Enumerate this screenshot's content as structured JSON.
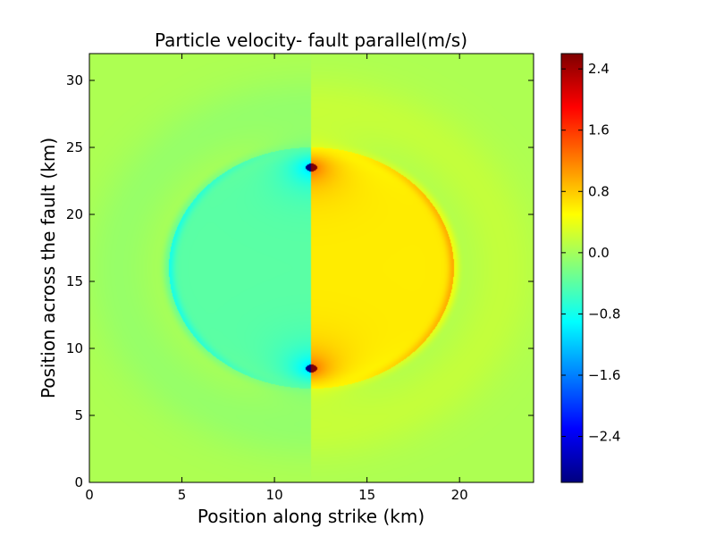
{
  "chart_data": {
    "type": "heatmap",
    "title": "Particle velocity- fault parallel(m/s)",
    "xlabel": "Position along strike (km)",
    "ylabel": "Position across the fault (km)",
    "xlim": [
      0,
      24
    ],
    "ylim": [
      0,
      32
    ],
    "xticks": [
      0,
      5,
      10,
      15,
      20
    ],
    "yticks": [
      0,
      5,
      10,
      15,
      20,
      25,
      30
    ],
    "colorbar": {
      "colormap": "jet",
      "range": [
        -3.0,
        2.6
      ],
      "ticks": [
        2.4,
        1.6,
        0.8,
        0.0,
        -0.8,
        -1.6,
        -2.4
      ],
      "tick_labels": [
        "2.4",
        "1.6",
        "0.8",
        "0.0",
        "−0.8",
        "−1.6",
        "−2.4"
      ]
    },
    "field": {
      "background_value": 0.05,
      "fault_x_km": 12.0,
      "fault_y_range_km": [
        8.5,
        23.5
      ],
      "left_side_value": -0.45,
      "right_side_value": 0.55,
      "wavefront_center_km": [
        12.0,
        16.0
      ],
      "wavefront_radius_x_km": 7.7,
      "wavefront_radius_y_km": 9.0,
      "tip_singularities": [
        {
          "x_km": 12.0,
          "y_km": 23.5,
          "min": -3.0,
          "max": 2.6
        },
        {
          "x_km": 12.0,
          "y_km": 8.5,
          "min": -3.0,
          "max": 2.6
        }
      ]
    }
  }
}
